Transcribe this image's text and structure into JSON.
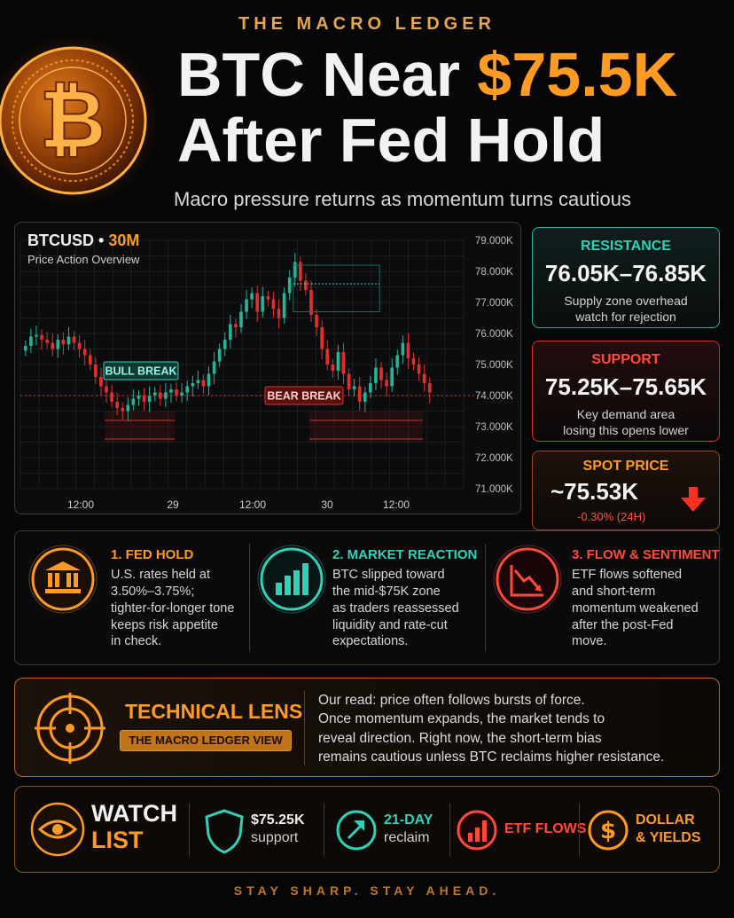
{
  "brand": "THE MACRO LEDGER",
  "headline": {
    "line1_prefix": "BTC Near ",
    "line1_price": "$75.5K",
    "line2": "After Fed Hold"
  },
  "subheadline": "Macro pressure returns as momentum turns cautious",
  "chart": {
    "symbol": "BTCUSD",
    "separator": " • ",
    "timeframe": "30M",
    "subtitle": "Price Action Overview",
    "annotations": [
      "BULL BREAK",
      "BEAR BREAK"
    ],
    "colors": {
      "up": "#23b597",
      "down": "#e0302e",
      "grid": "#1b1d1f"
    }
  },
  "chart_data": {
    "type": "candlestick",
    "title": "BTCUSD • 30M",
    "subtitle": "Price Action Overview",
    "y_axis_labels": [
      "79.000K",
      "78.000K",
      "77.000K",
      "76.000K",
      "75.000K",
      "74.000K",
      "73.000K",
      "72.000K",
      "71.000K"
    ],
    "y_values": [
      79000,
      78000,
      77000,
      76000,
      75000,
      74000,
      73000,
      72000,
      71000
    ],
    "ylim": [
      71000,
      79000
    ],
    "x_axis_labels": [
      "12:00",
      "29",
      "12:00",
      "30",
      "12:00"
    ],
    "closes": [
      75600,
      75900,
      75950,
      75800,
      75700,
      75500,
      75800,
      75650,
      75900,
      75700,
      75500,
      75300,
      75000,
      74600,
      74300,
      74100,
      73800,
      73600,
      73500,
      73700,
      73900,
      74000,
      73800,
      74000,
      74100,
      73900,
      74100,
      74200,
      74000,
      74100,
      74300,
      74400,
      74500,
      74300,
      74700,
      75100,
      75500,
      75800,
      76300,
      76200,
      76700,
      77100,
      77300,
      76700,
      77200,
      77100,
      76800,
      76500,
      77300,
      77800,
      78300,
      77700,
      77400,
      76600,
      76200,
      75500,
      75000,
      74800,
      75400,
      74700,
      74200,
      74300,
      73800,
      74100,
      74400,
      74900,
      74500,
      74300,
      74900,
      75300,
      75700,
      75200,
      75000,
      74700,
      74400,
      74100
    ],
    "annotations": [
      {
        "text": "BULL BREAK",
        "at_price": 74800
      },
      {
        "text": "BEAR BREAK",
        "at_price": 74000
      }
    ],
    "reference_line": 74000,
    "grid": true
  },
  "resistance": {
    "label": "RESISTANCE",
    "value": "76.05K–76.85K",
    "desc_line1": "Supply zone overhead",
    "desc_line2": "watch for rejection"
  },
  "support": {
    "label": "SUPPORT",
    "value": "75.25K–75.65K",
    "desc_line1": "Key demand area",
    "desc_line2": "losing this opens lower"
  },
  "spot": {
    "label": "SPOT PRICE",
    "value": "~75.53K",
    "change": "-0.30% (24H)"
  },
  "pillars": [
    {
      "title": "1. FED HOLD",
      "lines": [
        "U.S. rates held at",
        "3.50%–3.75%;",
        "tighter-for-longer tone",
        "keeps risk appetite",
        "in check."
      ],
      "color": "#ff9a22",
      "icon": "bank-icon"
    },
    {
      "title": "2. MARKET REACTION",
      "lines": [
        "BTC slipped toward",
        "the mid-$75K zone",
        "as traders reassessed",
        "liquidity and rate-cut",
        "expectations."
      ],
      "color": "#2fd2b8",
      "icon": "bar-chart-up-icon"
    },
    {
      "title": "3. FLOW & SENTIMENT",
      "lines": [
        "ETF flows softened",
        "and short-term",
        "momentum weakened",
        "after the post-Fed",
        "move."
      ],
      "color": "#ff4a3a",
      "icon": "chart-down-icon"
    }
  ],
  "lens": {
    "title": "TECHNICAL LENS",
    "badge": "THE MACRO LEDGER VIEW",
    "lines": [
      "Our read: price often follows bursts of force.",
      "Once momentum expands, the market tends to",
      "reveal direction. Right now, the short-term bias",
      "remains cautious unless BTC reclaims higher resistance."
    ]
  },
  "watchlist": {
    "title_line1": "WATCH",
    "title_line2": "LIST",
    "items": [
      {
        "line1": "$75.25K",
        "line2": "support",
        "icon": "shield-icon",
        "color": "#2fd2b8"
      },
      {
        "line1": "21-DAY",
        "line2": "reclaim",
        "icon": "arrow-up-right-icon",
        "color": "#2fd2b8"
      },
      {
        "line1": "ETF FLOWS",
        "line2": "",
        "icon": "bar-chart-icon",
        "color": "#ff4a3a"
      },
      {
        "line1": "DOLLAR",
        "line2": "& YIELDS",
        "icon": "dollar-icon",
        "color": "#ff9a22"
      }
    ]
  },
  "footer": "STAY SHARP. STAY AHEAD."
}
